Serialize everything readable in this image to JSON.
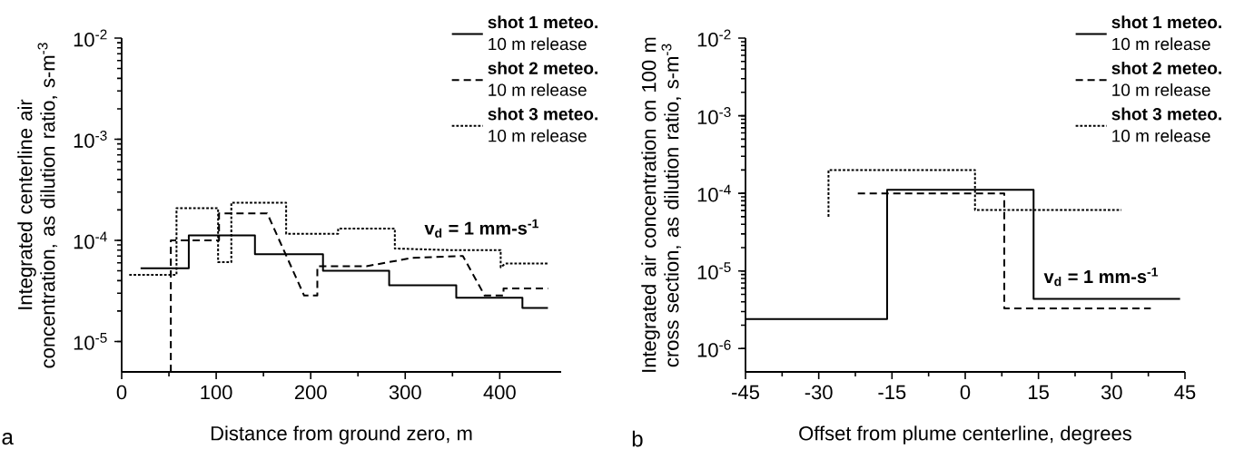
{
  "chart_data": [
    {
      "type": "line",
      "xlabel": "Distance from ground zero, m",
      "ylabel": "Integrated centerline air concentration, as dilution ratio, s-m$^{-3}$",
      "log": "y",
      "legend": "top right",
      "xlim": [
        0,
        465
      ],
      "ylim": [
        5e-06,
        0.01
      ],
      "xticks": [
        0,
        100,
        200,
        300,
        400
      ],
      "yticks": [
        {
          "value": 1e-05,
          "label": "10$^{-5}$"
        },
        {
          "value": 0.0001,
          "label": "10$^{-4}$"
        },
        {
          "value": 0.001,
          "label": "10$^{-3}$"
        },
        {
          "value": 0.01,
          "label": "10$^{-2}$"
        }
      ],
      "annotations": [
        "v$_{d}$ = 1 mm-s$^{-1}$",
        "a"
      ],
      "series": [
        {
          "name": "**shot 1 meteo.** 10 m release",
          "color": "#000000",
          "line_style": "solid",
          "x": [
            20,
            71,
            71,
            141,
            141,
            213,
            213,
            283,
            283,
            354,
            354,
            424,
            424,
            451
          ],
          "values": [
            5.3e-05,
            5.3e-05,
            0.000112,
            0.000112,
            7.3e-05,
            7.3e-05,
            5e-05,
            5e-05,
            3.6e-05,
            3.6e-05,
            2.7e-05,
            2.7e-05,
            2.15e-05,
            2.15e-05
          ]
        },
        {
          "name": "**shot 2 meteo.** 10 m release",
          "color": "#000000",
          "line_style": "dashed",
          "x": [
            52,
            52,
            103,
            103,
            154,
            193,
            207,
            207,
            259,
            307,
            361,
            384,
            404,
            404,
            451
          ],
          "values": [
            5e-06,
            0.0001,
            0.0001,
            0.000185,
            0.000185,
            2.85e-05,
            2.85e-05,
            5.55e-05,
            5.55e-05,
            6.7e-05,
            7e-05,
            2.85e-05,
            2.85e-05,
            3.35e-05,
            3.35e-05
          ]
        },
        {
          "name": "**shot 3 meteo.** 10 m release",
          "color": "#000000",
          "line_style": "dotted",
          "x": [
            8,
            58,
            58,
            102,
            102,
            116,
            116,
            174,
            174,
            229,
            229,
            289,
            289,
            350,
            401,
            401,
            406,
            451
          ],
          "values": [
            4.55e-05,
            4.55e-05,
            0.000208,
            0.000208,
            6.1e-05,
            6.1e-05,
            0.000236,
            0.000236,
            0.000116,
            0.000116,
            0.000131,
            0.000131,
            8.3e-05,
            8e-05,
            8e-05,
            5.4e-05,
            5.9e-05,
            5.9e-05
          ]
        }
      ]
    },
    {
      "type": "line",
      "xlabel": "Offset from plume centerline, degrees",
      "ylabel": "Integrated air concentration on 100 m cross section, as dilution ratio, s-m$^{-3}$",
      "log": "y",
      "legend": "top right",
      "xlim": [
        -45,
        45
      ],
      "ylim": [
        5e-07,
        0.01
      ],
      "xticks": [
        -45,
        -30,
        -15,
        0,
        15,
        30,
        45
      ],
      "yticks": [
        {
          "value": 1e-06,
          "label": "10$^{-6}$"
        },
        {
          "value": 1e-05,
          "label": "10$^{-5}$"
        },
        {
          "value": 0.0001,
          "label": "10$^{-4}$"
        },
        {
          "value": 0.001,
          "label": "10$^{-3}$"
        },
        {
          "value": 0.01,
          "label": "10$^{-2}$"
        }
      ],
      "annotations": [
        "v$_{d}$ = 1 mm-s$^{-1}$",
        "b"
      ],
      "series": [
        {
          "name": "**shot 1 meteo.** 10 m release",
          "color": "#000000",
          "line_style": "solid",
          "x": [
            -45,
            -16,
            -16,
            14,
            14,
            44
          ],
          "values": [
            2.4e-06,
            2.4e-06,
            0.000111,
            0.000111,
            4.35e-06,
            4.35e-06
          ]
        },
        {
          "name": "**shot 2 meteo.** 10 m release",
          "color": "#000000",
          "line_style": "dashed",
          "x": [
            -22,
            8,
            8,
            38
          ],
          "values": [
            0.0001,
            0.0001,
            3.3e-06,
            3.3e-06
          ]
        },
        {
          "name": "**shot 3 meteo.** 10 m release",
          "color": "#000000",
          "line_style": "dotted",
          "x": [
            -28,
            -28,
            2,
            2,
            32
          ],
          "values": [
            5e-05,
            0.0002,
            0.0002,
            6.1e-05,
            6.1e-05
          ]
        }
      ]
    }
  ]
}
